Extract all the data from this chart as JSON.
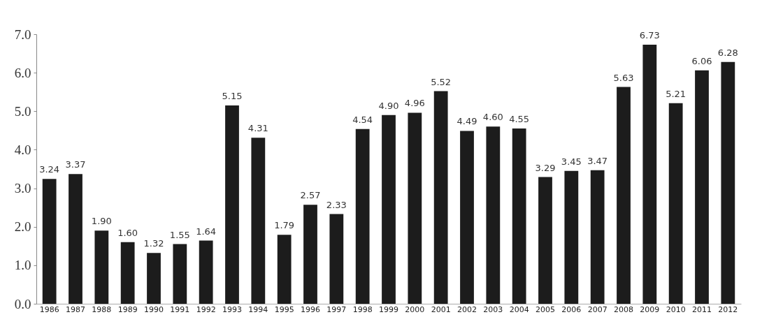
{
  "chart_data": {
    "type": "bar",
    "categories": [
      "1986",
      "1987",
      "1988",
      "1989",
      "1990",
      "1991",
      "1992",
      "1993",
      "1994",
      "1995",
      "1996",
      "1997",
      "1998",
      "1999",
      "2000",
      "2001",
      "2002",
      "2003",
      "2004",
      "2005",
      "2006",
      "2007",
      "2008",
      "2009",
      "2010",
      "2011",
      "2012"
    ],
    "values": [
      3.24,
      3.37,
      1.9,
      1.6,
      1.32,
      1.55,
      1.64,
      5.15,
      4.31,
      1.79,
      2.57,
      2.33,
      4.54,
      4.9,
      4.96,
      5.52,
      4.49,
      4.6,
      4.55,
      3.29,
      3.45,
      3.47,
      5.63,
      6.73,
      5.21,
      6.06,
      6.28
    ],
    "value_labels": [
      "3.24",
      "3.37",
      "1.90",
      "1.60",
      "1.32",
      "1.55",
      "1.64",
      "5.15",
      "4.31",
      "1.79",
      "2.57",
      "2.33",
      "4.54",
      "4.90",
      "4.96",
      "5.52",
      "4.49",
      "4.60",
      "4.55",
      "3.29",
      "3.45",
      "3.47",
      "5.63",
      "6.73",
      "5.21",
      "6.06",
      "6.28"
    ],
    "color": "#1c1c1c",
    "ylim": [
      0,
      7
    ],
    "yticks": [
      {
        "value": 0,
        "label": "0.0"
      },
      {
        "value": 1,
        "label": "1.0"
      },
      {
        "value": 2,
        "label": "2.0"
      },
      {
        "value": 3,
        "label": "3.0"
      },
      {
        "value": 4,
        "label": "4.0"
      },
      {
        "value": 5,
        "label": "5.0"
      },
      {
        "value": 6,
        "label": "6.0"
      },
      {
        "value": 7,
        "label": "7.0"
      }
    ],
    "grid": false
  }
}
